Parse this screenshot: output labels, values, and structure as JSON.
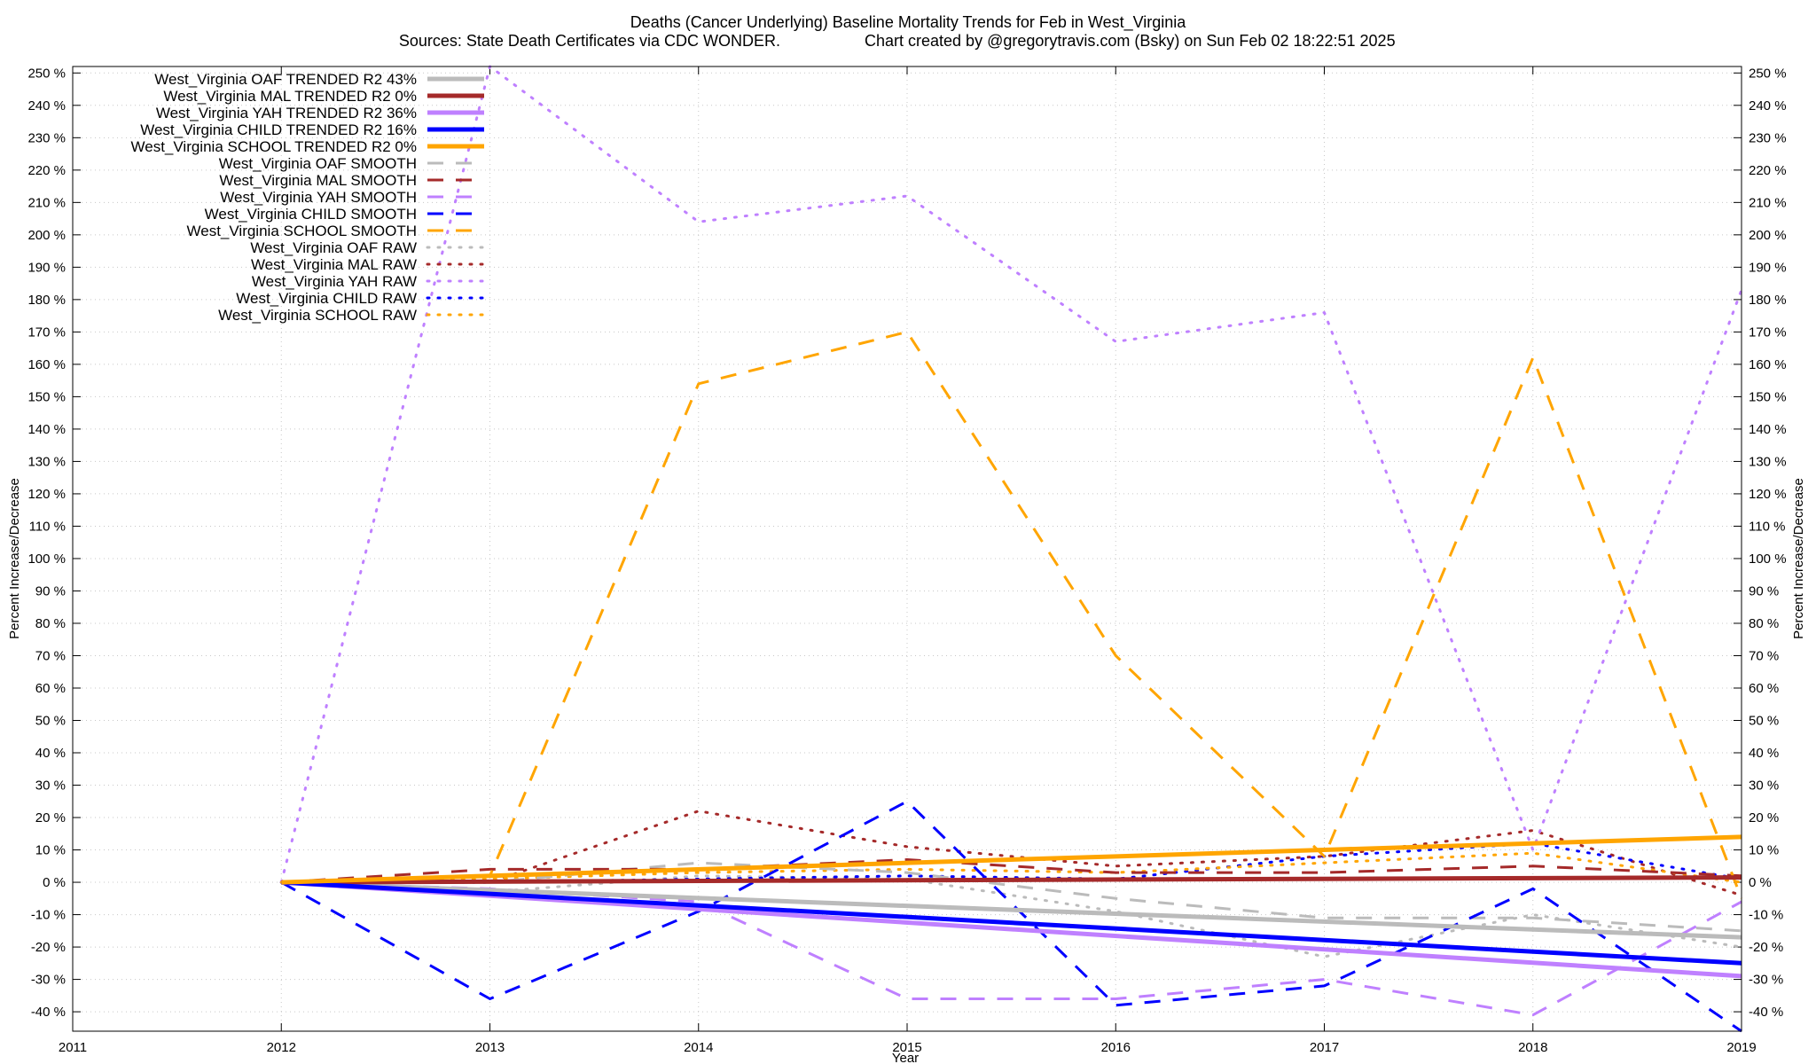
{
  "chart_data": {
    "type": "line",
    "title": "Deaths (Cancer Underlying)  Baseline Mortality Trends for Feb in West_Virginia",
    "subtitle_left": "Sources: State Death Certificates via CDC WONDER.",
    "subtitle_right": "Chart created by @gregorytravis.com (Bsky) on Sun Feb 02 18:22:51 2025",
    "xlabel": "Year",
    "ylabel": "Percent Increase/Decrease",
    "xlim": [
      2011,
      2019
    ],
    "ylim": [
      -46,
      252
    ],
    "x_ticks": [
      2011,
      2012,
      2013,
      2014,
      2015,
      2016,
      2017,
      2018,
      2019
    ],
    "y_ticks": [
      -40,
      -30,
      -20,
      -10,
      0,
      10,
      20,
      30,
      40,
      50,
      60,
      70,
      80,
      90,
      100,
      110,
      120,
      130,
      140,
      150,
      160,
      170,
      180,
      190,
      200,
      210,
      220,
      230,
      240,
      250
    ],
    "y_tick_suffix": " %",
    "grid": true,
    "legend_position": "top-left",
    "series": [
      {
        "name": "West_Virginia OAF TRENDED R2  43%",
        "style": "trend",
        "color": "#bbbbbb",
        "x": [
          2012,
          2019
        ],
        "y": [
          0,
          -17
        ]
      },
      {
        "name": "West_Virginia MAL TRENDED R2  0%",
        "style": "trend",
        "color": "#a52a2a",
        "x": [
          2012,
          2019
        ],
        "y": [
          0,
          1.5
        ]
      },
      {
        "name": "West_Virginia YAH TRENDED R2  36%",
        "style": "trend",
        "color": "#bf80ff",
        "x": [
          2012,
          2019
        ],
        "y": [
          0,
          -29
        ]
      },
      {
        "name": "West_Virginia CHILD TRENDED R2  16%",
        "style": "trend",
        "color": "#0000ff",
        "x": [
          2012,
          2019
        ],
        "y": [
          0,
          -25
        ]
      },
      {
        "name": "West_Virginia SCHOOL TRENDED R2  0%",
        "style": "trend",
        "color": "#ffa500",
        "x": [
          2012,
          2019
        ],
        "y": [
          0,
          14
        ]
      },
      {
        "name": "West_Virginia OAF SMOOTH",
        "style": "smooth",
        "color": "#bbbbbb",
        "x": [
          2012,
          2013,
          2014,
          2015,
          2016,
          2017,
          2018,
          2019
        ],
        "y": [
          0,
          0,
          6,
          3,
          -5,
          -11,
          -11,
          -15
        ]
      },
      {
        "name": "West_Virginia MAL SMOOTH",
        "style": "smooth",
        "color": "#a52a2a",
        "x": [
          2012,
          2013,
          2014,
          2015,
          2016,
          2017,
          2018,
          2019
        ],
        "y": [
          0,
          4,
          4,
          7,
          3,
          3,
          5,
          2
        ]
      },
      {
        "name": "West_Virginia YAH SMOOTH",
        "style": "smooth",
        "color": "#bf80ff",
        "x": [
          2012,
          2013,
          2014,
          2015,
          2016,
          2017,
          2018,
          2019
        ],
        "y": [
          0,
          -2,
          -6,
          -36,
          -36,
          -30,
          -41,
          -6
        ]
      },
      {
        "name": "West_Virginia CHILD SMOOTH",
        "style": "smooth",
        "color": "#0000ff",
        "x": [
          2012,
          2013,
          2014,
          2015,
          2016,
          2017,
          2018,
          2019
        ],
        "y": [
          0,
          -36,
          -9,
          25,
          -38,
          -32,
          -2,
          -46
        ]
      },
      {
        "name": "West_Virginia SCHOOL SMOOTH",
        "style": "smooth",
        "color": "#ffa500",
        "x": [
          2012,
          2013,
          2014,
          2015,
          2016,
          2017,
          2018,
          2019
        ],
        "y": [
          0,
          2,
          154,
          170,
          70,
          8,
          162,
          -5
        ]
      },
      {
        "name": "West_Virginia OAF RAW",
        "style": "raw",
        "color": "#bbbbbb",
        "x": [
          2012,
          2013,
          2014,
          2015,
          2016,
          2017,
          2018,
          2019
        ],
        "y": [
          0,
          -3,
          2,
          1,
          -9,
          -23,
          -10,
          -20
        ]
      },
      {
        "name": "West_Virginia MAL RAW",
        "style": "raw",
        "color": "#a52a2a",
        "x": [
          2012,
          2013,
          2014,
          2015,
          2016,
          2017,
          2018,
          2019
        ],
        "y": [
          0,
          0,
          22,
          11,
          5,
          8,
          16,
          -4
        ]
      },
      {
        "name": "West_Virginia YAH RAW",
        "style": "raw",
        "color": "#bf80ff",
        "x": [
          2012,
          2013,
          2014,
          2015,
          2016,
          2017,
          2018,
          2019
        ],
        "y": [
          0,
          252,
          204,
          212,
          167,
          176,
          10,
          183
        ]
      },
      {
        "name": "West_Virginia CHILD RAW",
        "style": "raw",
        "color": "#0000ff",
        "x": [
          2012,
          2013,
          2014,
          2015,
          2016,
          2017,
          2018,
          2019
        ],
        "y": [
          0,
          0,
          1,
          2,
          1,
          8,
          12,
          1
        ]
      },
      {
        "name": "West_Virginia SCHOOL RAW",
        "style": "raw",
        "color": "#ffa500",
        "x": [
          2012,
          2013,
          2014,
          2015,
          2016,
          2017,
          2018,
          2019
        ],
        "y": [
          0,
          1,
          3,
          4,
          3,
          6,
          9,
          0
        ]
      }
    ]
  }
}
